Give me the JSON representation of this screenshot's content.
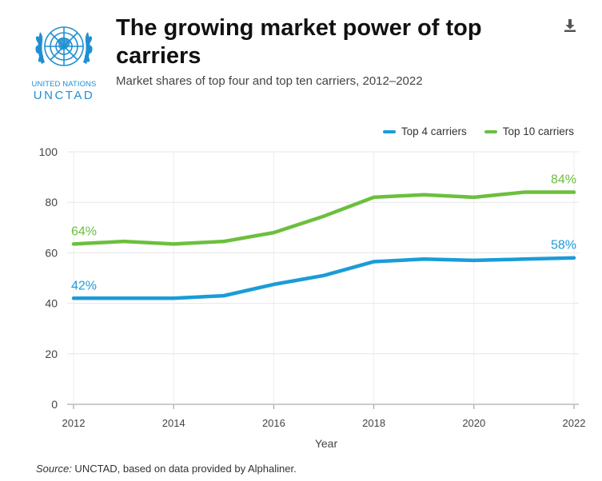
{
  "header": {
    "title": "The growing market power of top carriers",
    "subtitle": "Market shares of top four and top ten carriers, 2012–2022",
    "logo_line1": "UNITED NATIONS",
    "logo_line2": "UNCTAD",
    "download_icon": "download-icon"
  },
  "footer": {
    "source_label": "Source:",
    "source_text": " UNCTAD, based on data provided by Alphaliner."
  },
  "colors": {
    "top4": "#1a9cd8",
    "top10": "#6cbf3e",
    "logo": "#1f8fd1"
  },
  "chart_data": {
    "type": "line",
    "title": "The growing market power of top carriers",
    "subtitle": "Market shares of top four and top ten carriers, 2012–2022",
    "xlabel": "Year",
    "ylabel": "",
    "x": [
      2012,
      2013,
      2014,
      2015,
      2016,
      2017,
      2018,
      2019,
      2020,
      2021,
      2022
    ],
    "xticks": [
      2012,
      2014,
      2016,
      2018,
      2020,
      2022
    ],
    "ylim": [
      0,
      100
    ],
    "yticks": [
      0,
      20,
      40,
      60,
      80,
      100
    ],
    "grid": true,
    "legend_position": "top-right",
    "series": [
      {
        "name": "Top 4 carriers",
        "color": "#1a9cd8",
        "values": [
          42,
          42,
          42,
          43,
          47.5,
          51,
          56.5,
          57.5,
          57,
          57.5,
          58
        ],
        "labels": [
          {
            "index": 0,
            "text": "42%"
          },
          {
            "index": 10,
            "text": "58%"
          }
        ]
      },
      {
        "name": "Top 10 carriers",
        "color": "#6cbf3e",
        "values": [
          63.5,
          64.5,
          63.5,
          64.5,
          68,
          74.5,
          82,
          83,
          82,
          84,
          84
        ],
        "labels": [
          {
            "index": 0,
            "text": "64%"
          },
          {
            "index": 10,
            "text": "84%"
          }
        ]
      }
    ]
  }
}
